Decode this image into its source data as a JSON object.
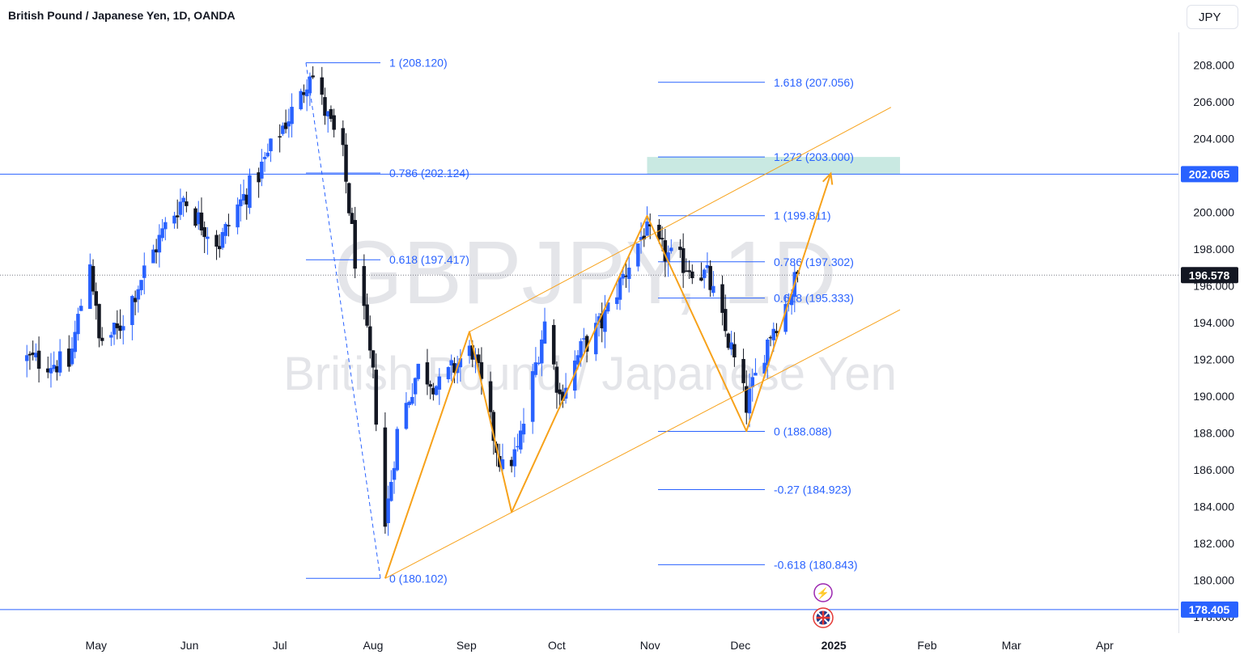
{
  "header": {
    "title": "British Pound / Japanese Yen, 1D, OANDA",
    "currency": "JPY"
  },
  "watermark": {
    "symbol": "GBPJPY, 1D",
    "name": "British Pound / Japanese Yen"
  },
  "colors": {
    "up": "#2962ff",
    "down": "#131722",
    "fib": "#2962ff",
    "pattern": "#f7a21b",
    "target_zone": "#b2dfd6",
    "hline": "#2962ff",
    "badge": "#2962ff"
  },
  "chart_data": {
    "type": "candlestick",
    "title": "British Pound / Japanese Yen, 1D, OANDA",
    "ylim": [
      177,
      210
    ],
    "y_ticks": [
      "178.000",
      "180.000",
      "182.000",
      "184.000",
      "186.000",
      "188.000",
      "190.000",
      "192.000",
      "194.000",
      "196.000",
      "198.000",
      "200.000",
      "202.000",
      "204.000",
      "206.000",
      "208.000"
    ],
    "x_ticks": [
      {
        "label": "May",
        "date": "2024-05-01"
      },
      {
        "label": "Jun",
        "date": "2024-06-01"
      },
      {
        "label": "Jul",
        "date": "2024-07-01"
      },
      {
        "label": "Aug",
        "date": "2024-08-01"
      },
      {
        "label": "Sep",
        "date": "2024-09-01"
      },
      {
        "label": "Oct",
        "date": "2024-10-01"
      },
      {
        "label": "Nov",
        "date": "2024-11-01"
      },
      {
        "label": "Dec",
        "date": "2024-12-01"
      },
      {
        "label": "2025",
        "date": "2025-01-01"
      },
      {
        "label": "Feb",
        "date": "2025-02-01"
      },
      {
        "label": "Mar",
        "date": "2025-03-01"
      },
      {
        "label": "Apr",
        "date": "2025-04-01"
      }
    ],
    "price_anchors": [
      [
        "2024-04-08",
        192.0
      ],
      [
        "2024-04-22",
        191.7
      ],
      [
        "2024-04-29",
        197.5
      ],
      [
        "2024-05-02",
        193.0
      ],
      [
        "2024-05-08",
        193.5
      ],
      [
        "2024-05-17",
        196.8
      ],
      [
        "2024-05-24",
        199.2
      ],
      [
        "2024-05-30",
        200.8
      ],
      [
        "2024-06-04",
        199.6
      ],
      [
        "2024-06-11",
        198.3
      ],
      [
        "2024-06-17",
        200.3
      ],
      [
        "2024-06-24",
        202.1
      ],
      [
        "2024-07-01",
        204.4
      ],
      [
        "2024-07-08",
        206.2
      ],
      [
        "2024-07-11",
        207.8
      ],
      [
        "2024-07-16",
        205.5
      ],
      [
        "2024-07-22",
        203.0
      ],
      [
        "2024-07-26",
        197.5
      ],
      [
        "2024-08-01",
        191.0
      ],
      [
        "2024-08-05",
        183.0
      ],
      [
        "2024-08-09",
        188.0
      ],
      [
        "2024-08-16",
        191.5
      ],
      [
        "2024-08-23",
        190.5
      ],
      [
        "2024-08-30",
        192.0
      ],
      [
        "2024-09-03",
        192.5
      ],
      [
        "2024-09-09",
        188.5
      ],
      [
        "2024-09-13",
        186.0
      ],
      [
        "2024-09-18",
        187.0
      ],
      [
        "2024-09-25",
        192.5
      ],
      [
        "2024-09-27",
        194.0
      ],
      [
        "2024-10-02",
        190.0
      ],
      [
        "2024-10-09",
        192.5
      ],
      [
        "2024-10-16",
        194.0
      ],
      [
        "2024-10-23",
        196.5
      ],
      [
        "2024-10-30",
        199.0
      ],
      [
        "2024-11-04",
        198.0
      ],
      [
        "2024-11-08",
        197.5
      ],
      [
        "2024-11-15",
        197.0
      ],
      [
        "2024-11-20",
        196.5
      ],
      [
        "2024-11-25",
        194.0
      ],
      [
        "2024-11-28",
        192.5
      ],
      [
        "2024-12-03",
        189.5
      ],
      [
        "2024-12-06",
        191.0
      ],
      [
        "2024-12-11",
        193.5
      ],
      [
        "2024-12-16",
        195.0
      ],
      [
        "2024-12-20",
        196.6
      ]
    ],
    "fib_retracement": [
      {
        "level": "1",
        "value": 208.12
      },
      {
        "level": "0.786",
        "value": 202.124
      },
      {
        "level": "0.618",
        "value": 197.417
      },
      {
        "level": "0",
        "value": 180.102
      }
    ],
    "fib_extension": [
      {
        "level": "1.618",
        "value": 207.056
      },
      {
        "level": "1.272",
        "value": 203.0
      },
      {
        "level": "1",
        "value": 199.811
      },
      {
        "level": "0.786",
        "value": 197.302
      },
      {
        "level": "0.618",
        "value": 195.333
      },
      {
        "level": "0",
        "value": 188.088
      },
      {
        "level": "-0.27",
        "value": 184.923
      },
      {
        "level": "-0.618",
        "value": 180.843
      }
    ],
    "zigzag": [
      [
        "2024-08-05",
        180.1
      ],
      [
        "2024-09-02",
        193.5
      ],
      [
        "2024-09-16",
        183.7
      ],
      [
        "2024-10-31",
        199.8
      ],
      [
        "2024-12-03",
        188.1
      ],
      [
        "2024-12-31",
        202.1
      ]
    ],
    "channel": {
      "upper": [
        [
          "2024-09-02",
          193.5
        ],
        [
          "2025-01-20",
          205.7
        ]
      ],
      "lower": [
        [
          "2024-08-05",
          180.1
        ],
        [
          "2025-01-23",
          194.7
        ]
      ]
    },
    "target_zone": {
      "from": "2024-10-31",
      "to": "2025-01-23",
      "low": 202.065,
      "high": 203.0
    },
    "price_lines": [
      {
        "value": 202.065,
        "label": "202.065"
      },
      {
        "value": 178.405,
        "label": "178.405"
      }
    ],
    "last_price": {
      "value": 196.578,
      "label": "196.578"
    }
  }
}
